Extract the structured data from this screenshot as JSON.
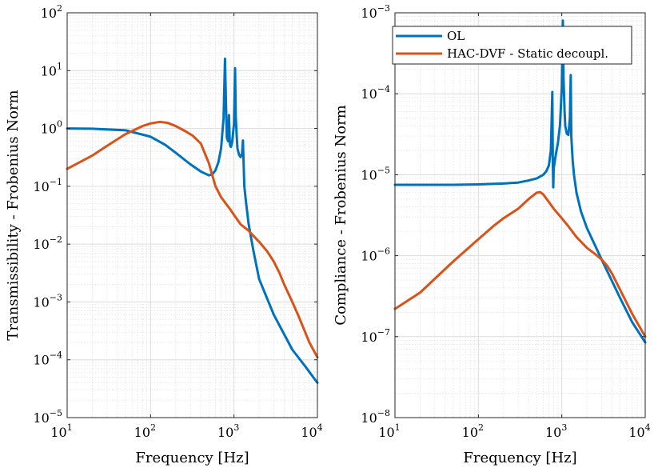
{
  "chart_data": [
    {
      "type": "line",
      "xscale": "log",
      "yscale": "log",
      "xlim": [
        10,
        10000
      ],
      "ylim": [
        1e-05,
        100
      ],
      "xlabel": "Frequency [Hz]",
      "ylabel": "Transmissibility - Frobenius Norm",
      "grid": true,
      "xticks": [
        {
          "base": "10",
          "exp": "1"
        },
        {
          "base": "10",
          "exp": "2"
        },
        {
          "base": "10",
          "exp": "3"
        },
        {
          "base": "10",
          "exp": "4"
        }
      ],
      "yticks": [
        {
          "base": "10",
          "exp": "−5"
        },
        {
          "base": "10",
          "exp": "−4"
        },
        {
          "base": "10",
          "exp": "−3"
        },
        {
          "base": "10",
          "exp": "−2"
        },
        {
          "base": "10",
          "exp": "−1"
        },
        {
          "base": "10",
          "exp": "0"
        },
        {
          "base": "10",
          "exp": "1"
        },
        {
          "base": "10",
          "exp": "2"
        }
      ],
      "series": [
        {
          "color": "#0072bd",
          "x": [
            10,
            20,
            50,
            100,
            150,
            200,
            300,
            400,
            500,
            550,
            600,
            650,
            700,
            750,
            780,
            800,
            820,
            850,
            870,
            890,
            900,
            920,
            950,
            1000,
            1030,
            1050,
            1080,
            1100,
            1150,
            1200,
            1250,
            1280,
            1300,
            1330,
            1400,
            1500,
            1700,
            2000,
            3000,
            5000,
            7000,
            10000
          ],
          "y": [
            1.0,
            0.99,
            0.93,
            0.72,
            0.52,
            0.38,
            0.24,
            0.18,
            0.155,
            0.16,
            0.19,
            0.26,
            0.45,
            1.5,
            16,
            3.0,
            0.7,
            0.6,
            1.7,
            0.6,
            0.5,
            0.48,
            0.58,
            1.2,
            11,
            1.6,
            0.7,
            0.45,
            0.35,
            0.32,
            0.37,
            0.62,
            0.3,
            0.1,
            0.05,
            0.022,
            0.008,
            0.0025,
            0.0006,
            0.00015,
            8e-05,
            4e-05
          ]
        },
        {
          "color": "#d95319",
          "x": [
            10,
            20,
            30,
            50,
            80,
            100,
            130,
            160,
            200,
            260,
            320,
            400,
            500,
            600,
            700,
            800,
            900,
            1000,
            1200,
            1500,
            1700,
            2000,
            2500,
            3000,
            3500,
            4000,
            5000,
            6000,
            7000,
            8000,
            10000
          ],
          "y": [
            0.2,
            0.34,
            0.5,
            0.8,
            1.1,
            1.22,
            1.3,
            1.25,
            1.1,
            0.9,
            0.75,
            0.55,
            0.25,
            0.1,
            0.065,
            0.05,
            0.04,
            0.032,
            0.022,
            0.017,
            0.014,
            0.011,
            0.0075,
            0.005,
            0.0032,
            0.002,
            0.001,
            0.00055,
            0.00032,
            0.0002,
            0.00011
          ]
        }
      ]
    },
    {
      "type": "line",
      "xscale": "log",
      "yscale": "log",
      "xlim": [
        10,
        10000
      ],
      "ylim": [
        1e-08,
        0.001
      ],
      "xlabel": "Frequency [Hz]",
      "ylabel": "Compliance - Frobenius Norm",
      "grid": true,
      "legend_position": "top-right",
      "xticks": [
        {
          "base": "10",
          "exp": "1"
        },
        {
          "base": "10",
          "exp": "2"
        },
        {
          "base": "10",
          "exp": "3"
        },
        {
          "base": "10",
          "exp": "4"
        }
      ],
      "yticks": [
        {
          "base": "10",
          "exp": "−8"
        },
        {
          "base": "10",
          "exp": "−7"
        },
        {
          "base": "10",
          "exp": "−6"
        },
        {
          "base": "10",
          "exp": "−5"
        },
        {
          "base": "10",
          "exp": "−4"
        },
        {
          "base": "10",
          "exp": "−3"
        }
      ],
      "series": [
        {
          "name": "OL",
          "color": "#0072bd",
          "x": [
            10,
            20,
            50,
            100,
            200,
            300,
            400,
            500,
            600,
            650,
            700,
            740,
            770,
            780,
            790,
            800,
            850,
            900,
            950,
            1000,
            1030,
            1050,
            1080,
            1100,
            1150,
            1200,
            1250,
            1280,
            1300,
            1350,
            1400,
            1500,
            1700,
            2000,
            3000,
            5000,
            7000,
            10000
          ],
          "y": [
            7.5e-06,
            7.5e-06,
            7.5e-06,
            7.6e-06,
            7.8e-06,
            8e-06,
            8.5e-06,
            9e-06,
            1e-05,
            1.1e-05,
            1.3e-05,
            2e-05,
            0.000105,
            1.5e-05,
            7e-06,
            1.2e-05,
            1.8e-05,
            2.5e-05,
            4e-05,
            0.00012,
            0.0008,
            0.00015,
            6e-05,
            4e-05,
            3.2e-05,
            3.1e-05,
            5e-05,
            0.00017,
            3e-05,
            1.5e-05,
            1e-05,
            6e-06,
            3.5e-06,
            2.2e-06,
            9e-07,
            3e-07,
            1.5e-07,
            8.5e-08
          ]
        },
        {
          "name": "HAC-DVF - Static decoupl.",
          "color": "#d95319",
          "x": [
            10,
            20,
            50,
            100,
            150,
            200,
            300,
            400,
            500,
            550,
            600,
            700,
            800,
            1000,
            1200,
            1500,
            2000,
            2500,
            3000,
            3500,
            4000,
            5000,
            7000,
            10000
          ],
          "y": [
            2.2e-07,
            3.5e-07,
            8.5e-07,
            1.6e-06,
            2.3e-06,
            2.9e-06,
            3.8e-06,
            5e-06,
            6e-06,
            6.1e-06,
            5.7e-06,
            4.6e-06,
            3.8e-06,
            2.9e-06,
            2.3e-06,
            1.7e-06,
            1.25e-06,
            1.05e-06,
            9e-07,
            7.5e-07,
            6e-07,
            3.8e-07,
            1.9e-07,
            1e-07
          ]
        }
      ]
    }
  ]
}
